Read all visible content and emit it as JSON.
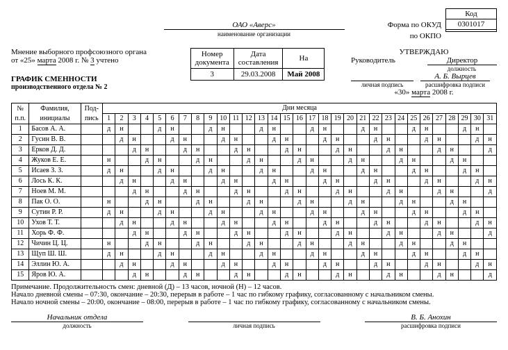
{
  "codes": {
    "kod_label": "Код",
    "okud_label": "Форма по ОКУД",
    "okud_value": "0301017",
    "okpo_label": "по ОКПО",
    "okpo_value": ""
  },
  "org": {
    "name": "ОАО «Аверс»",
    "sub": "наименование организации"
  },
  "union": {
    "line1": "Мнение выборного профсоюзного органа",
    "line2_pre": "от «25» ",
    "line2_month": "марта",
    "line2_post": " 2008 г. № ",
    "line2_num": "3",
    "line2_end": " учтено"
  },
  "title": {
    "main": "ГРАФИК СМЕННОСТИ",
    "sub": "производственного отдела № 2"
  },
  "docinfo": {
    "num_hdr": "Номер\nдокумента",
    "date_hdr": "Дата\nсоставления",
    "na_hdr": "На",
    "num": "3",
    "date": "29.03.2008",
    "na": "Май 2008"
  },
  "approve": {
    "title": "УТВЕРЖДАЮ",
    "boss_label": "Руководитель",
    "position": "Директор",
    "position_sub": "должность",
    "sign_sub": "личная подпись",
    "name": "А. Б. Вырцев",
    "name_sub": "расшифровка подписи",
    "date_pre": "«30» ",
    "date_month": "марта",
    "date_post": " 2008 г."
  },
  "schedule": {
    "h_num": "№\nп.п.",
    "h_name": "Фамилия,\nинициалы",
    "h_sign": "Под-\nпись",
    "h_days": "Дни месяца",
    "days": [
      "1",
      "2",
      "3",
      "4",
      "5",
      "6",
      "7",
      "8",
      "9",
      "10",
      "11",
      "12",
      "13",
      "14",
      "15",
      "16",
      "17",
      "18",
      "19",
      "20",
      "21",
      "22",
      "23",
      "24",
      "25",
      "26",
      "27",
      "28",
      "29",
      "30",
      "31"
    ],
    "rows": [
      {
        "n": "1",
        "name": "Басов А. А.",
        "c": [
          "д",
          "н",
          "",
          "",
          "д",
          "н",
          "",
          "",
          "д",
          "н",
          "",
          "",
          "д",
          "н",
          "",
          "",
          "д",
          "н",
          "",
          "",
          "д",
          "н",
          "",
          "",
          "д",
          "н",
          "",
          "",
          "д",
          "н",
          ""
        ]
      },
      {
        "n": "2",
        "name": "Гусин В. В.",
        "c": [
          "",
          "д",
          "н",
          "",
          "",
          "д",
          "н",
          "",
          "",
          "д",
          "н",
          "",
          "",
          "д",
          "н",
          "",
          "",
          "д",
          "н",
          "",
          "",
          "д",
          "н",
          "",
          "",
          "д",
          "н",
          "",
          "",
          "д",
          "н"
        ]
      },
      {
        "n": "3",
        "name": "Ерков Д. Д.",
        "c": [
          "",
          "",
          "д",
          "н",
          "",
          "",
          "д",
          "н",
          "",
          "",
          "д",
          "н",
          "",
          "",
          "д",
          "н",
          "",
          "",
          "д",
          "н",
          "",
          "",
          "д",
          "н",
          "",
          "",
          "д",
          "н",
          "",
          "",
          "д"
        ]
      },
      {
        "n": "4",
        "name": "Жуков Е. Е.",
        "c": [
          "н",
          "",
          "",
          "д",
          "н",
          "",
          "",
          "д",
          "н",
          "",
          "",
          "д",
          "н",
          "",
          "",
          "д",
          "н",
          "",
          "",
          "д",
          "н",
          "",
          "",
          "д",
          "н",
          "",
          "",
          "д",
          "н",
          "",
          ""
        ]
      },
      {
        "n": "5",
        "name": "Исаев З. З.",
        "c": [
          "д",
          "н",
          "",
          "",
          "д",
          "н",
          "",
          "",
          "д",
          "н",
          "",
          "",
          "д",
          "н",
          "",
          "",
          "д",
          "н",
          "",
          "",
          "д",
          "н",
          "",
          "",
          "д",
          "н",
          "",
          "",
          "д",
          "н",
          ""
        ]
      },
      {
        "n": "6",
        "name": "Лось К. К.",
        "c": [
          "",
          "д",
          "н",
          "",
          "",
          "д",
          "н",
          "",
          "",
          "д",
          "н",
          "",
          "",
          "д",
          "н",
          "",
          "",
          "д",
          "н",
          "",
          "",
          "д",
          "н",
          "",
          "",
          "д",
          "н",
          "",
          "",
          "д",
          "н"
        ]
      },
      {
        "n": "7",
        "name": "Ноев М. М.",
        "c": [
          "",
          "",
          "д",
          "н",
          "",
          "",
          "д",
          "н",
          "",
          "",
          "д",
          "н",
          "",
          "",
          "д",
          "н",
          "",
          "",
          "д",
          "н",
          "",
          "",
          "д",
          "н",
          "",
          "",
          "д",
          "н",
          "",
          "",
          "д"
        ]
      },
      {
        "n": "8",
        "name": "Пак О. О.",
        "c": [
          "н",
          "",
          "",
          "д",
          "н",
          "",
          "",
          "д",
          "н",
          "",
          "",
          "д",
          "н",
          "",
          "",
          "д",
          "н",
          "",
          "",
          "д",
          "н",
          "",
          "",
          "д",
          "н",
          "",
          "",
          "д",
          "н",
          "",
          ""
        ]
      },
      {
        "n": "9",
        "name": "Сутин Р. Р.",
        "c": [
          "д",
          "н",
          "",
          "",
          "д",
          "н",
          "",
          "",
          "д",
          "н",
          "",
          "",
          "д",
          "н",
          "",
          "",
          "д",
          "н",
          "",
          "",
          "д",
          "н",
          "",
          "",
          "д",
          "н",
          "",
          "",
          "д",
          "н",
          ""
        ]
      },
      {
        "n": "10",
        "name": "Ухов Т. Т.",
        "c": [
          "",
          "д",
          "н",
          "",
          "",
          "д",
          "н",
          "",
          "",
          "д",
          "н",
          "",
          "",
          "д",
          "н",
          "",
          "",
          "д",
          "н",
          "",
          "",
          "д",
          "н",
          "",
          "",
          "д",
          "н",
          "",
          "",
          "д",
          "н"
        ]
      },
      {
        "n": "11",
        "name": "Хорь Ф. Ф.",
        "c": [
          "",
          "",
          "д",
          "н",
          "",
          "",
          "д",
          "н",
          "",
          "",
          "д",
          "н",
          "",
          "",
          "д",
          "н",
          "",
          "",
          "д",
          "н",
          "",
          "",
          "д",
          "н",
          "",
          "",
          "д",
          "н",
          "",
          "",
          "д"
        ]
      },
      {
        "n": "12",
        "name": "Чичин Ц. Ц.",
        "c": [
          "н",
          "",
          "",
          "д",
          "н",
          "",
          "",
          "д",
          "н",
          "",
          "",
          "д",
          "н",
          "",
          "",
          "д",
          "н",
          "",
          "",
          "д",
          "н",
          "",
          "",
          "д",
          "н",
          "",
          "",
          "д",
          "н",
          "",
          ""
        ]
      },
      {
        "n": "13",
        "name": "Щуп Ш. Ш.",
        "c": [
          "д",
          "н",
          "",
          "",
          "д",
          "н",
          "",
          "",
          "д",
          "н",
          "",
          "",
          "д",
          "н",
          "",
          "",
          "д",
          "н",
          "",
          "",
          "д",
          "н",
          "",
          "",
          "д",
          "н",
          "",
          "",
          "д",
          "н",
          ""
        ]
      },
      {
        "n": "14",
        "name": "Эллин Ю. А.",
        "c": [
          "",
          "д",
          "н",
          "",
          "",
          "д",
          "н",
          "",
          "",
          "д",
          "н",
          "",
          "",
          "д",
          "н",
          "",
          "",
          "д",
          "н",
          "",
          "",
          "д",
          "н",
          "",
          "",
          "д",
          "н",
          "",
          "",
          "д",
          "н"
        ]
      },
      {
        "n": "15",
        "name": "Яров Ю. А.",
        "c": [
          "",
          "",
          "д",
          "н",
          "",
          "",
          "д",
          "н",
          "",
          "",
          "д",
          "н",
          "",
          "",
          "д",
          "н",
          "",
          "",
          "д",
          "н",
          "",
          "",
          "д",
          "н",
          "",
          "",
          "д",
          "н",
          "",
          "",
          "д"
        ]
      }
    ]
  },
  "notes": {
    "l1": "Примечание. Продолжительность смен: дневной (Д) – 13 часов, ночной (Н) – 12 часов.",
    "l2": "Начало дневной смены – 07:30, окончание – 20:30, перерыв в работе – 1 час по гибкому графику, согласованному с начальником смены.",
    "l3": "Начало ночной смены – 20:00, окончание – 08:00, перерыв в работе – 1 час по гибкому графику, согласованному с начальником смены."
  },
  "footer": {
    "pos": "Начальник отдела",
    "pos_sub": "должность",
    "sign_sub": "личная подпись",
    "name": "В. Б. Анохин",
    "name_sub": "расшифровка подписи"
  }
}
